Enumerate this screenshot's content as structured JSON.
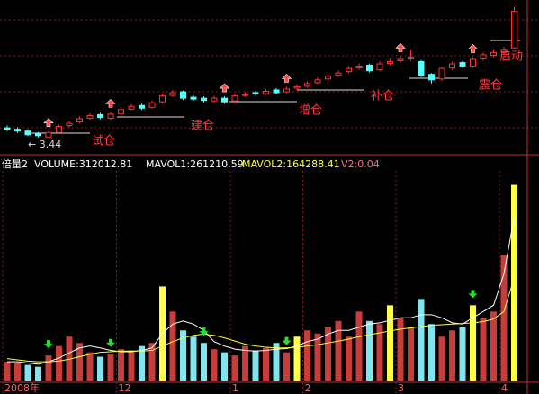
{
  "chart_data": [
    {
      "type": "candlestick",
      "open": [
        3.65,
        3.62,
        3.58,
        3.52,
        3.45,
        3.55,
        3.7,
        3.78,
        3.86,
        3.94,
        3.86,
        3.96,
        4.06,
        4.14,
        4.1,
        4.22,
        4.36,
        4.44,
        4.32,
        4.3,
        4.24,
        4.3,
        4.24,
        4.36,
        4.42,
        4.4,
        4.48,
        4.44,
        4.52,
        4.56,
        4.64,
        4.72,
        4.8,
        4.88,
        4.96,
        5.02,
        4.92,
        5.06,
        5.12,
        5.16,
        5.1,
        4.82,
        4.72,
        4.96,
        5.08,
        5.0,
        5.16,
        5.24,
        5.3,
        5.4
      ],
      "high": [
        3.7,
        3.66,
        3.62,
        3.56,
        3.58,
        3.72,
        3.8,
        3.9,
        3.97,
        3.98,
        4.0,
        4.1,
        4.17,
        4.18,
        4.25,
        4.4,
        4.48,
        4.47,
        4.36,
        4.34,
        4.35,
        4.34,
        4.39,
        4.43,
        4.46,
        4.5,
        4.52,
        4.55,
        4.6,
        4.67,
        4.75,
        4.83,
        4.9,
        5.0,
        5.06,
        5.05,
        5.1,
        5.16,
        5.22,
        5.35,
        5.14,
        4.85,
        4.98,
        5.1,
        5.12,
        5.2,
        5.3,
        5.36,
        5.42,
        6.3
      ],
      "low": [
        3.58,
        3.54,
        3.47,
        3.44,
        3.45,
        3.53,
        3.66,
        3.75,
        3.83,
        3.84,
        3.83,
        3.93,
        4.03,
        4.04,
        4.07,
        4.19,
        4.33,
        4.26,
        4.24,
        4.21,
        4.2,
        4.18,
        4.21,
        4.33,
        4.36,
        4.37,
        4.39,
        4.41,
        4.49,
        4.53,
        4.61,
        4.69,
        4.77,
        4.85,
        4.92,
        4.86,
        4.89,
        5.02,
        5.08,
        5.12,
        4.76,
        4.62,
        4.68,
        4.92,
        4.96,
        4.97,
        5.12,
        5.2,
        5.26,
        5.38
      ],
      "close": [
        3.62,
        3.58,
        3.5,
        3.48,
        3.55,
        3.68,
        3.75,
        3.85,
        3.92,
        3.88,
        3.95,
        4.05,
        4.12,
        4.08,
        4.2,
        4.35,
        4.42,
        4.3,
        4.28,
        4.25,
        4.3,
        4.22,
        4.35,
        4.38,
        4.4,
        4.45,
        4.42,
        4.5,
        4.55,
        4.62,
        4.7,
        4.78,
        4.85,
        4.95,
        5.0,
        4.9,
        5.05,
        5.1,
        5.15,
        5.2,
        4.8,
        4.7,
        4.95,
        5.05,
        5.0,
        5.15,
        5.25,
        5.3,
        5.35,
        6.2
      ],
      "up_color": "#ff3232",
      "down_color": "#54ffff",
      "ylim": [
        3.2,
        6.35
      ],
      "low_label": "← 3.44",
      "annotations": [
        "试仓",
        "建仓",
        "增仓",
        "补仓",
        "震仓",
        "启动"
      ]
    },
    {
      "type": "bar",
      "header": [
        "倍量2",
        "VOLUME:312012.81",
        "MAVOL1:261210.59",
        "MAVOL2:164288.41",
        "V2:0.04"
      ],
      "categories": [
        "2008年",
        null,
        null,
        null,
        null,
        null,
        null,
        null,
        null,
        null,
        null,
        "12",
        null,
        null,
        null,
        null,
        null,
        null,
        null,
        null,
        null,
        null,
        "1",
        null,
        null,
        null,
        null,
        null,
        null,
        "2",
        null,
        null,
        null,
        null,
        null,
        null,
        null,
        null,
        "3",
        null,
        null,
        null,
        null,
        null,
        null,
        null,
        null,
        null,
        "4",
        null
      ],
      "values": [
        30000,
        28000,
        25000,
        22000,
        40000,
        55000,
        70000,
        60000,
        45000,
        38000,
        42000,
        50000,
        48000,
        55000,
        60000,
        150000,
        110000,
        80000,
        70000,
        60000,
        50000,
        45000,
        40000,
        55000,
        48000,
        52000,
        60000,
        45000,
        70000,
        80000,
        75000,
        85000,
        95000,
        70000,
        110000,
        95000,
        90000,
        120000,
        100000,
        85000,
        130000,
        90000,
        70000,
        80000,
        85000,
        120000,
        100000,
        110000,
        200000,
        312012.81
      ],
      "colors": [
        "#c83c3c",
        "#c83c3c",
        "#7fe5ef",
        "#7fe5ef",
        "#c83c3c",
        "#c83c3c",
        "#c83c3c",
        "#c83c3c",
        "#c83c3c",
        "#7fe5ef",
        "#c83c3c",
        "#c83c3c",
        "#c83c3c",
        "#7fe5ef",
        "#c83c3c",
        "#ffff46",
        "#c83c3c",
        "#7fe5ef",
        "#7fe5ef",
        "#7fe5ef",
        "#c83c3c",
        "#7fe5ef",
        "#c83c3c",
        "#c83c3c",
        "#7fe5ef",
        "#c83c3c",
        "#7fe5ef",
        "#c83c3c",
        "#ffff46",
        "#c83c3c",
        "#c83c3c",
        "#c83c3c",
        "#c83c3c",
        "#c83c3c",
        "#c83c3c",
        "#7fe5ef",
        "#c83c3c",
        "#ffff46",
        "#c83c3c",
        "#c83c3c",
        "#7fe5ef",
        "#7fe5ef",
        "#c83c3c",
        "#c83c3c",
        "#7fe5ef",
        "#ffff46",
        "#c83c3c",
        "#c83c3c",
        "#c83c3c",
        "#ffff46"
      ],
      "series": [
        {
          "name": "MAVOL1",
          "color": "#ffffff",
          "values": [
            30000,
            30000,
            28000,
            26000,
            30000,
            36000,
            44000,
            52000,
            55000,
            52000,
            48000,
            46000,
            46000,
            48000,
            52000,
            75000,
            90000,
            95000,
            90000,
            80000,
            62000,
            55000,
            50000,
            48000,
            47000,
            48000,
            50000,
            51000,
            55000,
            62000,
            66000,
            74000,
            80000,
            80000,
            85000,
            90000,
            92000,
            96000,
            100000,
            100000,
            105000,
            105000,
            100000,
            92000,
            90000,
            100000,
            110000,
            120000,
            170000,
            261210.59
          ]
        },
        {
          "name": "MAVOL2",
          "color": "#ffff46",
          "values": [
            35000,
            33000,
            31000,
            30000,
            30000,
            31000,
            34000,
            38000,
            42000,
            45000,
            46000,
            47000,
            47000,
            47000,
            48000,
            55000,
            62000,
            68000,
            72000,
            74000,
            72000,
            68000,
            63000,
            58000,
            55000,
            53000,
            52000,
            52000,
            53000,
            55000,
            57000,
            60000,
            63000,
            66000,
            70000,
            73000,
            76000,
            79000,
            82000,
            84000,
            86000,
            88000,
            89000,
            90000,
            91000,
            92000,
            94000,
            98000,
            110000,
            164288.41
          ]
        }
      ],
      "ylim": [
        0,
        330000
      ]
    }
  ]
}
